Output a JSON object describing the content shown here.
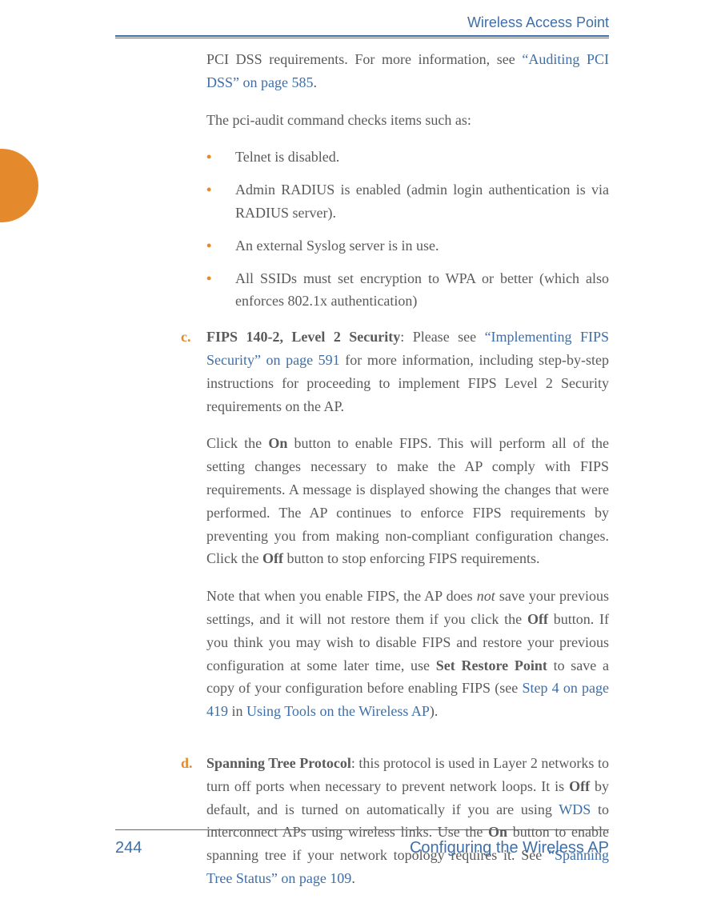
{
  "header": {
    "title": "Wireless Access Point"
  },
  "footer": {
    "page_number": "244",
    "section": "Configuring the Wireless AP"
  },
  "colors": {
    "accent_blue": "#3e6fa9",
    "accent_orange": "#e58a2c",
    "body_text": "#5a5a5a"
  },
  "body": {
    "intro_prefix": "PCI DSS requirements. For more information, see ",
    "intro_link": "“Auditing PCI DSS” on page 585",
    "intro_suffix": ".",
    "checks_lead": "The pci-audit command checks items such as:",
    "bullets": [
      "Telnet is disabled.",
      "Admin RADIUS is enabled (admin login authentication is via RADIUS server).",
      "An external Syslog server is in use.",
      "All SSIDs must set encryption to WPA or better (which also enforces 802.1x authentication)"
    ],
    "item_c": {
      "letter": "c.",
      "title": "FIPS 140-2, Level 2 Security",
      "after_title": ": Please see ",
      "link1": "“Implementing FIPS Security” on page 591",
      "after_link1": " for more information, including step-by-step instructions for proceeding to implement FIPS Level 2 Security requirements on the AP.",
      "p2_a": "Click the ",
      "p2_on": "On",
      "p2_b": " button to enable FIPS. This will perform all of the setting changes necessary to make the AP comply with FIPS requirements. A message is displayed showing the changes that were performed. The AP continues to enforce FIPS requirements by preventing you from making non-compliant configuration changes. Click the ",
      "p2_off": "Off",
      "p2_c": " button to stop enforcing FIPS requirements.",
      "p3_a": "Note that when you enable FIPS, the AP does ",
      "p3_not": "not",
      "p3_b": " save your previous settings, and it will not restore them if you click the ",
      "p3_off": "Off",
      "p3_c": " button. If you think you may wish to disable FIPS and restore your previous configuration at some later time, use ",
      "p3_srp": "Set Restore Point",
      "p3_d": " to save a copy of your configuration before enabling FIPS (see ",
      "p3_link2": "Step 4 on page 419",
      "p3_e": " in ",
      "p3_link3": "Using Tools on the Wireless AP",
      "p3_f": ")."
    },
    "item_d": {
      "letter": "d.",
      "title": "Spanning Tree Protocol",
      "a": ": this protocol is used in Layer 2 networks to turn off ports when necessary to prevent network loops. It is ",
      "off": "Off",
      "b": " by default, and is turned on automatically if you are using ",
      "wds": "WDS",
      "c": " to interconnect APs using wireless links. Use the ",
      "on": "On",
      "d": " button to enable spanning tree if your network topology requires it. See ",
      "link": "“Spanning Tree Status” on page 109",
      "e": "."
    }
  }
}
